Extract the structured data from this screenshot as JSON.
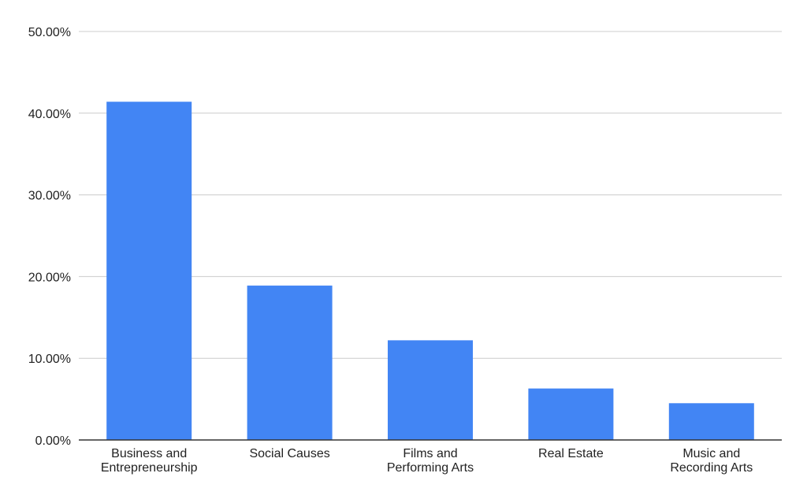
{
  "chart_data": {
    "type": "bar",
    "title": "",
    "xlabel": "",
    "ylabel": "",
    "categories": [
      "Business and Entrepreneurship",
      "Social Causes",
      "Films and Performing Arts",
      "Real Estate",
      "Music and Recording Arts"
    ],
    "category_label_lines": [
      [
        "Business and",
        "Entrepreneurship"
      ],
      [
        "Social Causes"
      ],
      [
        "Films and",
        "Performing Arts"
      ],
      [
        "Real Estate"
      ],
      [
        "Music and",
        "Recording Arts"
      ]
    ],
    "values": [
      41.4,
      18.9,
      12.2,
      6.3,
      4.5
    ],
    "ylim": [
      0,
      50
    ],
    "yticks": [
      0,
      10,
      20,
      30,
      40,
      50
    ],
    "ytick_labels": [
      "0.00%",
      "10.00%",
      "20.00%",
      "30.00%",
      "40.00%",
      "50.00%"
    ],
    "grid": true,
    "legend": "none",
    "colors": {
      "bar": "#4285f4",
      "grid": "#cccccc",
      "axis": "#333333"
    }
  }
}
